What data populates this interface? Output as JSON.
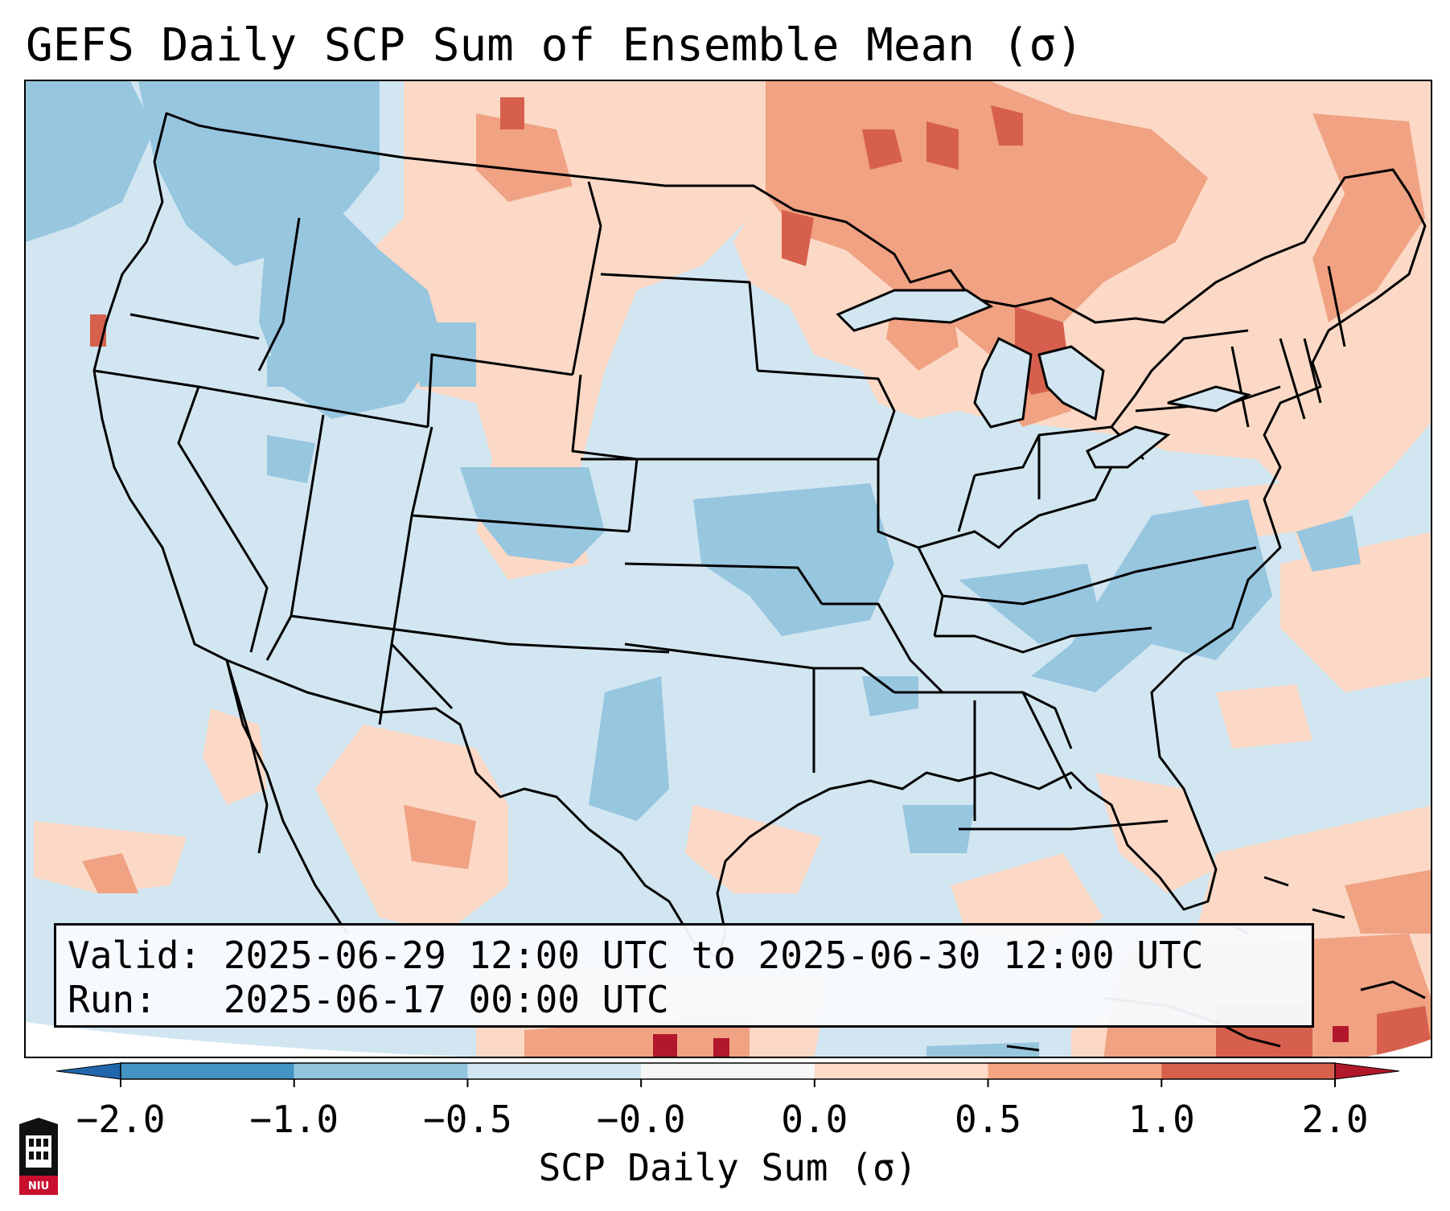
{
  "title": "GEFS Daily SCP Sum of Ensemble Mean (σ)",
  "info_box": {
    "valid_line": "Valid: 2025-06-29 12:00 UTC to 2025-06-30 12:00 UTC",
    "run_line": "Run:   2025-06-17 00:00 UTC"
  },
  "colorbar": {
    "label": "SCP Daily Sum (σ)",
    "ticks": [
      "−2.0",
      "−1.0",
      "−0.5",
      "−0.0",
      "0.0",
      "0.5",
      "1.0",
      "2.0"
    ],
    "colors": [
      "#4393c3",
      "#92c5de",
      "#d1e5f0",
      "#f7f7f7",
      "#fddbc7",
      "#f4a582",
      "#d6604d"
    ],
    "extend_low_color": "#2166ac",
    "extend_high_color": "#b2182b"
  },
  "palette": {
    "background": "#d2e6f1",
    "light_red": "#fbd9c6",
    "medium_red": "#f0a283",
    "strong_red": "#d6604d",
    "dark_red": "#b2182b",
    "light_blue": "#97c6df",
    "medium_blue": "#7fb6d8"
  },
  "logo": {
    "text": "NIU"
  }
}
